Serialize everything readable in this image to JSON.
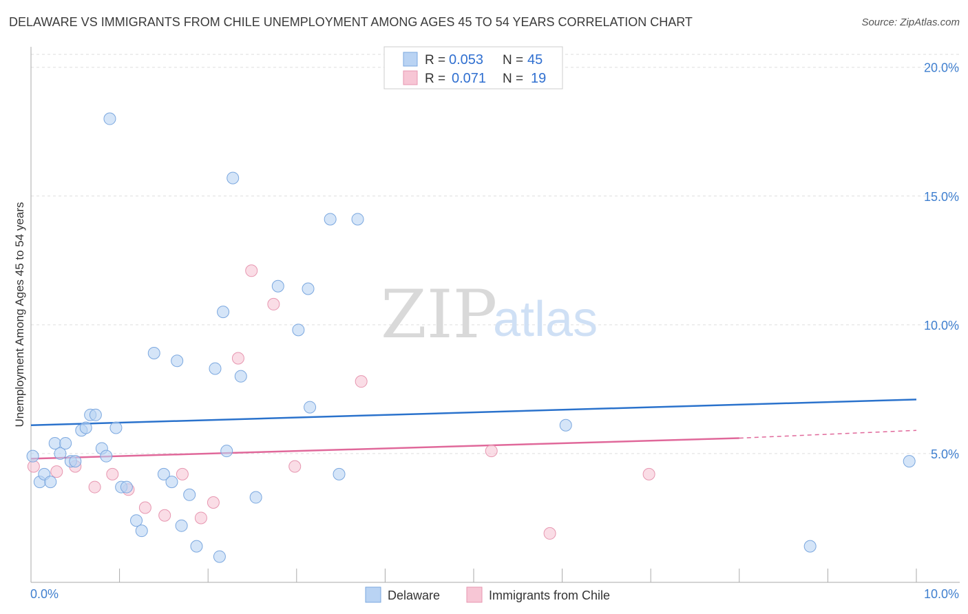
{
  "title": "DELAWARE VS IMMIGRANTS FROM CHILE UNEMPLOYMENT AMONG AGES 45 TO 54 YEARS CORRELATION CHART",
  "source": "Source: ZipAtlas.com",
  "watermark": {
    "zip": "ZIP",
    "atlas": "atlas"
  },
  "colors": {
    "delaware_fill": "#b9d3f3",
    "delaware_stroke": "#7aa7df",
    "delaware_line": "#2a72cc",
    "chile_fill": "#f7c6d5",
    "chile_stroke": "#e796b0",
    "chile_line": "#e0689a",
    "tick_text": "#3f7fcf",
    "grid": "#dddddd"
  },
  "legend": {
    "rows": [
      {
        "r_label": "R =",
        "r_value": "0.053",
        "n_label": "N =",
        "n_value": "45"
      },
      {
        "r_label": "R =",
        "r_value": "0.071",
        "n_label": "N =",
        "n_value": "19"
      }
    ]
  },
  "chart_data": {
    "type": "scatter",
    "title": "DELAWARE VS IMMIGRANTS FROM CHILE UNEMPLOYMENT AMONG AGES 45 TO 54 YEARS CORRELATION CHART",
    "xlabel": "",
    "ylabel": "Unemployment Among Ages 45 to 54 years",
    "xlim": [
      0,
      10
    ],
    "ylim": [
      0,
      20.5
    ],
    "x_tick_labels": [
      "0.0%",
      "10.0%"
    ],
    "y_ticks": [
      5,
      10,
      15,
      20
    ],
    "y_tick_labels": [
      "5.0%",
      "10.0%",
      "15.0%",
      "20.0%"
    ],
    "grid": true,
    "legend_position": "top-center",
    "series": [
      {
        "name": "Delaware",
        "r": 0.053,
        "n": 45,
        "trend": {
          "x": [
            0,
            10
          ],
          "y": [
            6.1,
            7.1
          ]
        },
        "points": [
          {
            "x": 0.02,
            "y": 4.9
          },
          {
            "x": 0.1,
            "y": 3.9
          },
          {
            "x": 0.15,
            "y": 4.2
          },
          {
            "x": 0.22,
            "y": 3.9
          },
          {
            "x": 0.27,
            "y": 5.4
          },
          {
            "x": 0.33,
            "y": 5.0
          },
          {
            "x": 0.39,
            "y": 5.4
          },
          {
            "x": 0.45,
            "y": 4.7
          },
          {
            "x": 0.5,
            "y": 4.7
          },
          {
            "x": 0.57,
            "y": 5.9
          },
          {
            "x": 0.62,
            "y": 6.0
          },
          {
            "x": 0.67,
            "y": 6.5
          },
          {
            "x": 0.73,
            "y": 6.5
          },
          {
            "x": 0.8,
            "y": 5.2
          },
          {
            "x": 0.85,
            "y": 4.9
          },
          {
            "x": 0.89,
            "y": 18.0
          },
          {
            "x": 0.96,
            "y": 6.0
          },
          {
            "x": 1.02,
            "y": 3.7
          },
          {
            "x": 1.08,
            "y": 3.7
          },
          {
            "x": 1.19,
            "y": 2.4
          },
          {
            "x": 1.25,
            "y": 2.0
          },
          {
            "x": 1.39,
            "y": 8.9
          },
          {
            "x": 1.5,
            "y": 4.2
          },
          {
            "x": 1.59,
            "y": 3.9
          },
          {
            "x": 1.65,
            "y": 8.6
          },
          {
            "x": 1.7,
            "y": 2.2
          },
          {
            "x": 1.79,
            "y": 3.4
          },
          {
            "x": 1.87,
            "y": 1.4
          },
          {
            "x": 2.08,
            "y": 8.3
          },
          {
            "x": 2.13,
            "y": 1.0
          },
          {
            "x": 2.17,
            "y": 10.5
          },
          {
            "x": 2.21,
            "y": 5.1
          },
          {
            "x": 2.28,
            "y": 15.7
          },
          {
            "x": 2.37,
            "y": 8.0
          },
          {
            "x": 2.54,
            "y": 3.3
          },
          {
            "x": 2.79,
            "y": 11.5
          },
          {
            "x": 3.02,
            "y": 9.8
          },
          {
            "x": 3.13,
            "y": 11.4
          },
          {
            "x": 3.15,
            "y": 6.8
          },
          {
            "x": 3.38,
            "y": 14.1
          },
          {
            "x": 3.48,
            "y": 4.2
          },
          {
            "x": 3.69,
            "y": 14.1
          },
          {
            "x": 6.04,
            "y": 6.1
          },
          {
            "x": 8.8,
            "y": 1.4
          },
          {
            "x": 9.92,
            "y": 4.7
          }
        ]
      },
      {
        "name": "Immigrants from Chile",
        "r": 0.071,
        "n": 19,
        "trend": {
          "x": [
            0,
            8.0
          ],
          "y": [
            4.8,
            5.6
          ],
          "dashed_to": [
            10,
            5.9
          ]
        },
        "points": [
          {
            "x": 0.03,
            "y": 4.5
          },
          {
            "x": 0.29,
            "y": 4.3
          },
          {
            "x": 0.5,
            "y": 4.5
          },
          {
            "x": 0.72,
            "y": 3.7
          },
          {
            "x": 0.92,
            "y": 4.2
          },
          {
            "x": 1.1,
            "y": 3.6
          },
          {
            "x": 1.29,
            "y": 2.9
          },
          {
            "x": 1.51,
            "y": 2.6
          },
          {
            "x": 1.71,
            "y": 4.2
          },
          {
            "x": 1.92,
            "y": 2.5
          },
          {
            "x": 2.06,
            "y": 3.1
          },
          {
            "x": 2.34,
            "y": 8.7
          },
          {
            "x": 2.49,
            "y": 12.1
          },
          {
            "x": 2.74,
            "y": 10.8
          },
          {
            "x": 2.98,
            "y": 4.5
          },
          {
            "x": 3.73,
            "y": 7.8
          },
          {
            "x": 5.2,
            "y": 5.1
          },
          {
            "x": 5.86,
            "y": 1.9
          },
          {
            "x": 6.98,
            "y": 4.2
          }
        ]
      }
    ]
  }
}
